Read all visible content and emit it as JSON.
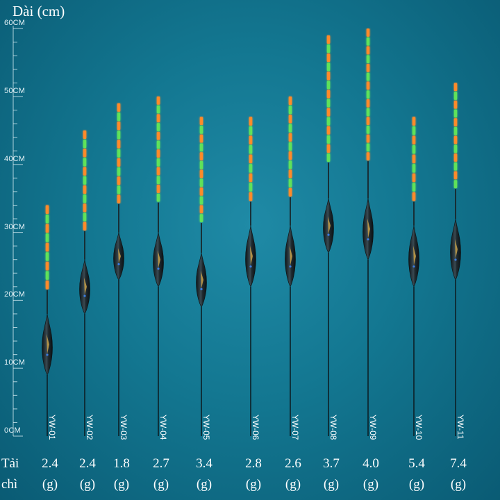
{
  "axis": {
    "title": "Dài (cm)",
    "ticks": [
      {
        "value": 60,
        "label": "60CM"
      },
      {
        "value": 50,
        "label": "50CM"
      },
      {
        "value": 40,
        "label": "40CM"
      },
      {
        "value": 30,
        "label": "30CM"
      },
      {
        "value": 20,
        "label": "20CM"
      },
      {
        "value": 10,
        "label": "10CM"
      },
      {
        "value": 0,
        "label": "0CM"
      }
    ],
    "range": [
      0,
      60
    ]
  },
  "load_row": {
    "label_line1": "Tải",
    "label_line2": "chì",
    "unit": "(g)"
  },
  "colors": {
    "background": "#137791",
    "tip_green": "#5fe25a",
    "tip_orange": "#ff8a2a",
    "body_dark": "#1e2a30",
    "stem": "#0d1f25"
  },
  "floats": [
    {
      "model": "YW-01",
      "load": "2.4",
      "top_cm": 34,
      "body_top_cm": 18,
      "body_bottom_cm": 9,
      "bottom_cm": 0
    },
    {
      "model": "YW-02",
      "load": "2.4",
      "top_cm": 45,
      "body_top_cm": 26,
      "body_bottom_cm": 18,
      "bottom_cm": 0
    },
    {
      "model": "YW-03",
      "load": "1.8",
      "top_cm": 49,
      "body_top_cm": 30,
      "body_bottom_cm": 23,
      "bottom_cm": 0
    },
    {
      "model": "YW-04",
      "load": "2.7",
      "top_cm": 50,
      "body_top_cm": 30,
      "body_bottom_cm": 22,
      "bottom_cm": 0
    },
    {
      "model": "YW-05",
      "load": "3.4",
      "top_cm": 47,
      "body_top_cm": 27,
      "body_bottom_cm": 19,
      "bottom_cm": 0
    },
    {
      "model": "YW-06",
      "load": "2.8",
      "top_cm": 47,
      "body_top_cm": 31,
      "body_bottom_cm": 22,
      "bottom_cm": 0
    },
    {
      "model": "YW-07",
      "load": "2.6",
      "top_cm": 50,
      "body_top_cm": 31,
      "body_bottom_cm": 22,
      "bottom_cm": 0
    },
    {
      "model": "YW-08",
      "load": "3.7",
      "top_cm": 59,
      "body_top_cm": 35,
      "body_bottom_cm": 27,
      "bottom_cm": 0
    },
    {
      "model": "YW-09",
      "load": "4.0",
      "top_cm": 60,
      "body_top_cm": 35,
      "body_bottom_cm": 26,
      "bottom_cm": 0
    },
    {
      "model": "YW-10",
      "load": "5.4",
      "top_cm": 47,
      "body_top_cm": 31,
      "body_bottom_cm": 22,
      "bottom_cm": 0
    },
    {
      "model": "YW-11",
      "load": "7.4",
      "top_cm": 52,
      "body_top_cm": 32,
      "body_bottom_cm": 23,
      "bottom_cm": 0
    }
  ]
}
